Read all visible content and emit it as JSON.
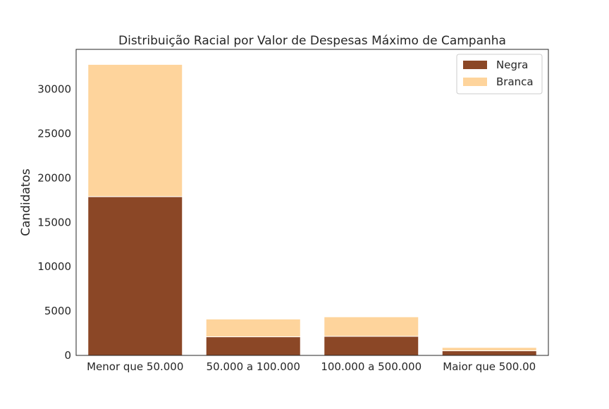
{
  "chart_data": {
    "type": "bar",
    "stacked": true,
    "title": "Distribuição Racial por Valor de Despesas Máximo de Campanha",
    "xlabel": "",
    "ylabel": "Candidatos",
    "categories": [
      "Menor que 50.000",
      "50.000 a 100.000",
      "100.000 a 500.000",
      "Maior que 500.00"
    ],
    "series": [
      {
        "name": "Negra",
        "color": "#8b4726",
        "values": [
          17900,
          2100,
          2150,
          520
        ]
      },
      {
        "name": "Branca",
        "color": "#fed49c",
        "values": [
          14900,
          2000,
          2200,
          380
        ]
      }
    ],
    "ylim": [
      0,
      34500
    ],
    "yticks": [
      0,
      5000,
      10000,
      15000,
      20000,
      25000,
      30000
    ],
    "grid": false,
    "legend_position": "top-right"
  }
}
